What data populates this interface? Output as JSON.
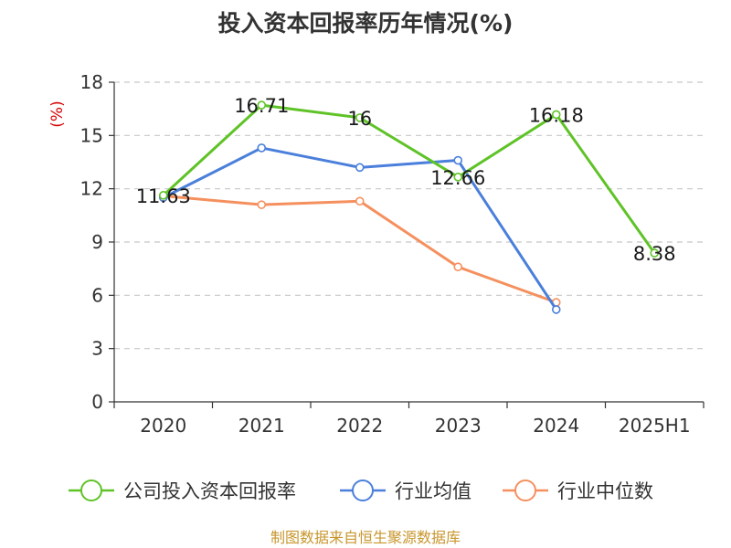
{
  "chart_data": {
    "type": "line",
    "title": "投入资本回报率历年情况(%)",
    "y_unit": "(%)",
    "categories": [
      "2020",
      "2021",
      "2022",
      "2023",
      "2024",
      "2025H1"
    ],
    "ylim": [
      0,
      18
    ],
    "yticks": [
      "0",
      "3",
      "6",
      "9",
      "12",
      "15",
      "18"
    ],
    "grid": true,
    "legend_position": "bottom",
    "series": [
      {
        "name": "公司投入资本回报率",
        "color": "#5fc327",
        "values": [
          11.63,
          16.71,
          16,
          12.66,
          16.18,
          8.38
        ],
        "labels": [
          "11.63",
          "16.71",
          "16",
          "12.66",
          "16.18",
          "8.38"
        ]
      },
      {
        "name": "行业均值",
        "color": "#4a7fdb",
        "values": [
          11.5,
          14.3,
          13.2,
          13.6,
          5.2,
          null
        ],
        "labels": []
      },
      {
        "name": "行业中位数",
        "color": "#f5905e",
        "values": [
          11.6,
          11.1,
          11.3,
          7.6,
          5.6,
          null
        ],
        "labels": []
      }
    ]
  },
  "footer": {
    "source": "制图数据来自恒生聚源数据库"
  }
}
